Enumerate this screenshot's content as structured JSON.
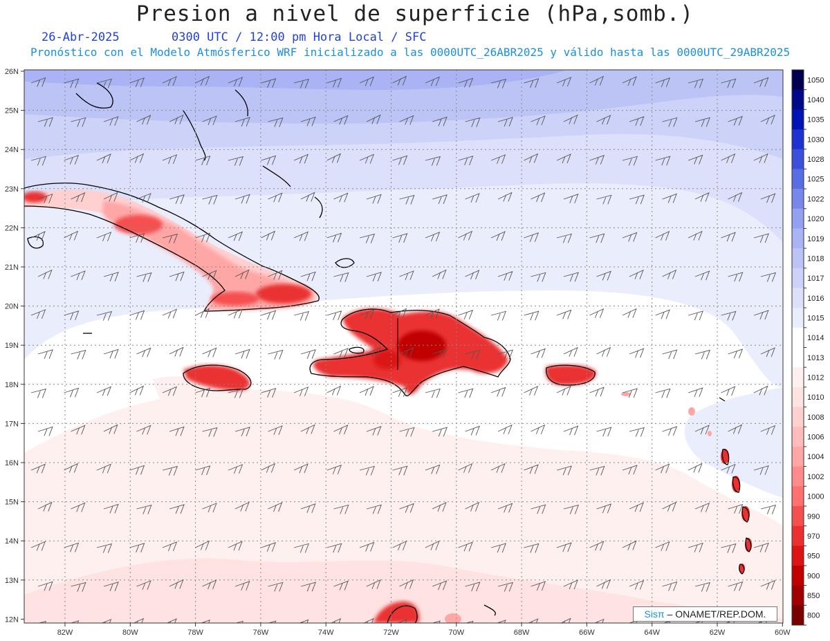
{
  "header": {
    "title": "Presion a nivel de superficie (hPa,somb.)",
    "date": "26-Abr-2025",
    "time_info": "0300 UTC / 12:00 pm Hora Local / SFC",
    "model_info": "Pronóstico con el Modelo Atmósferico WRF inicializado a las 0000UTC_26ABR2025 y válido hasta las  0000UTC_29ABR2025"
  },
  "map": {
    "lat_labels": [
      "26N",
      "25N",
      "24N",
      "23N",
      "22N",
      "21N",
      "20N",
      "19N",
      "18N",
      "17N",
      "16N",
      "15N",
      "14N",
      "13N",
      "12N"
    ],
    "lon_labels": [
      "82W",
      "80W",
      "78W",
      "76W",
      "74W",
      "72W",
      "70W",
      "68W",
      "66W",
      "64W",
      "62W",
      "60W"
    ],
    "grid_style": "dotted"
  },
  "colorbar": {
    "levels": [
      "1050",
      "1040",
      "1035",
      "1030",
      "1028",
      "1025",
      "1022",
      "1020",
      "1019",
      "1018",
      "1017",
      "1016",
      "1015",
      "1014",
      "1013",
      "1012",
      "1010",
      "1008",
      "1006",
      "1004",
      "1002",
      "1000",
      "990",
      "970",
      "950",
      "900",
      "850",
      "800"
    ],
    "colors": [
      "#00004e",
      "#000a88",
      "#0014b4",
      "#1e32d0",
      "#3c50dc",
      "#5a6ee4",
      "#7888ea",
      "#94a0f0",
      "#aab4f4",
      "#bcc4f6",
      "#ccd2f8",
      "#dce0fa",
      "#eaedfc",
      "#ffffff",
      "#ffffff",
      "#fff0f0",
      "#ffe2e2",
      "#ffd0d0",
      "#ffbcbc",
      "#ffa6a6",
      "#ff8c8c",
      "#ff7070",
      "#f55050",
      "#ea3030",
      "#dc1414",
      "#c00000",
      "#a00000",
      "#7a0000"
    ]
  },
  "credit": {
    "brand": "Sisπ",
    "text": " – ONAMET/REP.DOM."
  }
}
